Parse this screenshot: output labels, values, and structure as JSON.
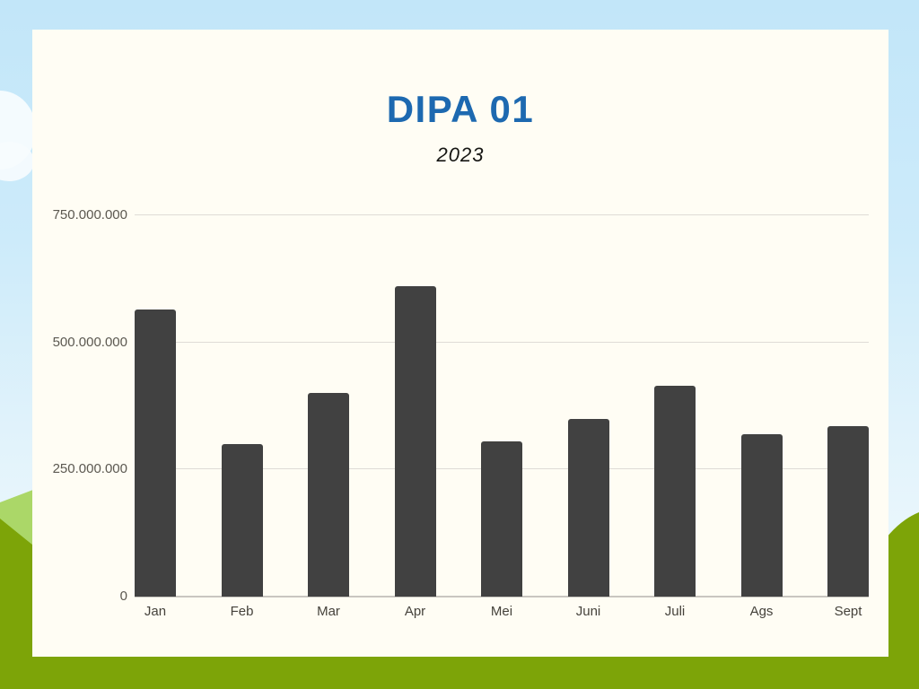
{
  "page": {
    "title": "DIPA 01",
    "subtitle": "2023"
  },
  "colors": {
    "sky": "#c2e6f9",
    "card": "#fffdf4",
    "title_blue": "#1d69b0",
    "bar": "#414141",
    "hill_light_green": "#abd768",
    "hill_olive": "#7da408",
    "gridline": "#dfdcd6",
    "cloud": "#f4fbfe"
  },
  "chart_data": {
    "type": "bar",
    "title": "DIPA 01",
    "subtitle": "2023",
    "categories": [
      "Jan",
      "Feb",
      "Mar",
      "Apr",
      "Mei",
      "Juni",
      "Juli",
      "Ags",
      "Sept"
    ],
    "values": [
      565000000,
      300000000,
      400000000,
      610000000,
      305000000,
      350000000,
      415000000,
      320000000,
      335000000
    ],
    "xlabel": "",
    "ylabel": "",
    "ylim": [
      0,
      750000000
    ],
    "yticks": [
      0,
      250000000,
      500000000,
      750000000
    ],
    "ytick_labels": [
      "0",
      "250.000.000",
      "500.000.000",
      "750.000.000"
    ],
    "grid": true,
    "legend": false,
    "bar_color": "#414141"
  }
}
